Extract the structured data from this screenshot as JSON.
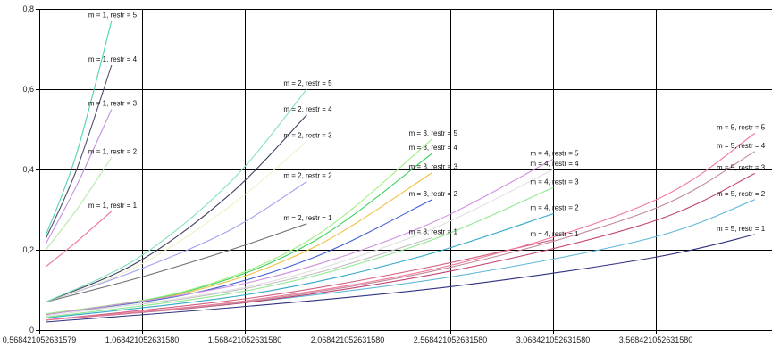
{
  "chart_data": {
    "type": "line",
    "title": "",
    "xlabel": "",
    "ylabel": "",
    "xlim": [
      0.568421052631579,
      4.05
    ],
    "ylim": [
      0,
      0.8
    ],
    "grid": true,
    "legend": "none",
    "x_ticks": [
      {
        "value": 0.568421052631579,
        "label": "0,568421052631579"
      },
      {
        "value": 1.06842105263158,
        "label": "1,068421052631580"
      },
      {
        "value": 1.56842105263158,
        "label": "1,568421052631580"
      },
      {
        "value": 2.06842105263158,
        "label": "2,068421052631580"
      },
      {
        "value": 2.56842105263158,
        "label": "2,568421052631580"
      },
      {
        "value": 3.06842105263158,
        "label": "3,068421052631580"
      },
      {
        "value": 3.56842105263158,
        "label": "3,568421052631580"
      }
    ],
    "y_ticks": [
      {
        "value": 0,
        "label": "0"
      },
      {
        "value": 0.2,
        "label": "0,2"
      },
      {
        "value": 0.4,
        "label": "0,4"
      },
      {
        "value": 0.6,
        "label": "0,6"
      },
      {
        "value": 0.8,
        "label": "0,8"
      }
    ],
    "series": [
      {
        "name": "m = 1, restr = 1",
        "color": "#f07090",
        "x": [
          0.6,
          0.75,
          0.92
        ],
        "y": [
          0.158,
          0.22,
          0.296
        ]
      },
      {
        "name": "m = 1, restr = 2",
        "color": "#b8e8a8",
        "x": [
          0.6,
          0.75,
          0.92
        ],
        "y": [
          0.2,
          0.3,
          0.43
        ]
      },
      {
        "name": "m = 1, restr = 3",
        "color": "#c090e0",
        "x": [
          0.6,
          0.75,
          0.92
        ],
        "y": [
          0.215,
          0.36,
          0.55
        ]
      },
      {
        "name": "m = 1, restr = 4",
        "color": "#505070",
        "x": [
          0.6,
          0.75,
          0.92
        ],
        "y": [
          0.228,
          0.4,
          0.66
        ]
      },
      {
        "name": "m = 1, restr = 5",
        "color": "#50d0b0",
        "x": [
          0.6,
          0.75,
          0.92
        ],
        "y": [
          0.236,
          0.44,
          0.77
        ]
      },
      {
        "name": "m = 2, restr = 1",
        "color": "#707070",
        "x": [
          0.6,
          1.05,
          1.5,
          1.87
        ],
        "y": [
          0.07,
          0.13,
          0.2,
          0.265
        ]
      },
      {
        "name": "m = 2, restr = 2",
        "color": "#a0a0f0",
        "x": [
          0.6,
          1.05,
          1.5,
          1.87
        ],
        "y": [
          0.07,
          0.15,
          0.25,
          0.37
        ]
      },
      {
        "name": "m = 2, restr = 3",
        "color": "#f0f0c8",
        "x": [
          0.6,
          1.05,
          1.5,
          1.87
        ],
        "y": [
          0.07,
          0.16,
          0.31,
          0.47
        ]
      },
      {
        "name": "m = 2, restr = 4",
        "color": "#404060",
        "x": [
          0.6,
          1.05,
          1.5,
          1.87
        ],
        "y": [
          0.07,
          0.17,
          0.34,
          0.536
        ]
      },
      {
        "name": "m = 2, restr = 5",
        "color": "#80e0c0",
        "x": [
          0.6,
          1.05,
          1.5,
          1.87
        ],
        "y": [
          0.07,
          0.18,
          0.37,
          0.6
        ]
      },
      {
        "name": "m = 3, restr = 1",
        "color": "#c0c0c0",
        "x": [
          0.6,
          1.3,
          1.9,
          2.48
        ],
        "y": [
          0.04,
          0.08,
          0.14,
          0.23
        ]
      },
      {
        "name": "m = 3, restr = 2",
        "color": "#4060d0",
        "x": [
          0.6,
          1.3,
          1.9,
          2.48
        ],
        "y": [
          0.04,
          0.09,
          0.18,
          0.325
        ]
      },
      {
        "name": "m = 3, restr = 3",
        "color": "#f0c040",
        "x": [
          0.6,
          1.3,
          1.9,
          2.48
        ],
        "y": [
          0.04,
          0.095,
          0.205,
          0.392
        ]
      },
      {
        "name": "m = 3, restr = 4",
        "color": "#40d060",
        "x": [
          0.6,
          1.3,
          1.9,
          2.48
        ],
        "y": [
          0.04,
          0.098,
          0.22,
          0.44
        ]
      },
      {
        "name": "m = 3, restr = 5",
        "color": "#a0f080",
        "x": [
          0.6,
          1.3,
          1.9,
          2.48
        ],
        "y": [
          0.04,
          0.1,
          0.23,
          0.476
        ]
      },
      {
        "name": "m = 4, restr = 1",
        "color": "#d06080",
        "x": [
          0.6,
          1.6,
          2.4,
          3.07
        ],
        "y": [
          0.025,
          0.08,
          0.15,
          0.225
        ]
      },
      {
        "name": "m = 4, restr = 2",
        "color": "#30a8c8",
        "x": [
          0.6,
          1.6,
          2.4,
          3.07
        ],
        "y": [
          0.03,
          0.09,
          0.18,
          0.29
        ]
      },
      {
        "name": "m = 4, restr = 3",
        "color": "#90e890",
        "x": [
          0.6,
          1.6,
          2.4,
          3.07
        ],
        "y": [
          0.032,
          0.1,
          0.21,
          0.355
        ]
      },
      {
        "name": "m = 4, restr = 4",
        "color": "#e0e0e0",
        "x": [
          0.6,
          1.6,
          2.4,
          3.07
        ],
        "y": [
          0.035,
          0.11,
          0.235,
          0.4
        ]
      },
      {
        "name": "m = 4, restr = 5",
        "color": "#d090e0",
        "x": [
          0.6,
          1.6,
          2.4,
          3.07
        ],
        "y": [
          0.038,
          0.12,
          0.25,
          0.426
        ]
      },
      {
        "name": "m = 5, restr = 1",
        "color": "#303080",
        "x": [
          0.6,
          1.6,
          2.6,
          3.55,
          4.05
        ],
        "y": [
          0.02,
          0.06,
          0.11,
          0.18,
          0.238
        ]
      },
      {
        "name": "m = 5, restr = 2",
        "color": "#60b8d8",
        "x": [
          0.6,
          1.6,
          2.6,
          3.55,
          4.05
        ],
        "y": [
          0.025,
          0.07,
          0.135,
          0.23,
          0.325
        ]
      },
      {
        "name": "m = 5, restr = 3",
        "color": "#c04070",
        "x": [
          0.6,
          1.6,
          2.6,
          3.55,
          4.05
        ],
        "y": [
          0.025,
          0.07,
          0.15,
          0.27,
          0.39
        ]
      },
      {
        "name": "m = 5, restr = 4",
        "color": "#c08898",
        "x": [
          0.6,
          1.6,
          2.6,
          3.55,
          4.05
        ],
        "y": [
          0.025,
          0.072,
          0.16,
          0.3,
          0.445
        ]
      },
      {
        "name": "m = 5, restr = 5",
        "color": "#f07898",
        "x": [
          0.6,
          1.6,
          2.6,
          3.55,
          4.05
        ],
        "y": [
          0.025,
          0.075,
          0.165,
          0.32,
          0.49
        ]
      }
    ]
  }
}
